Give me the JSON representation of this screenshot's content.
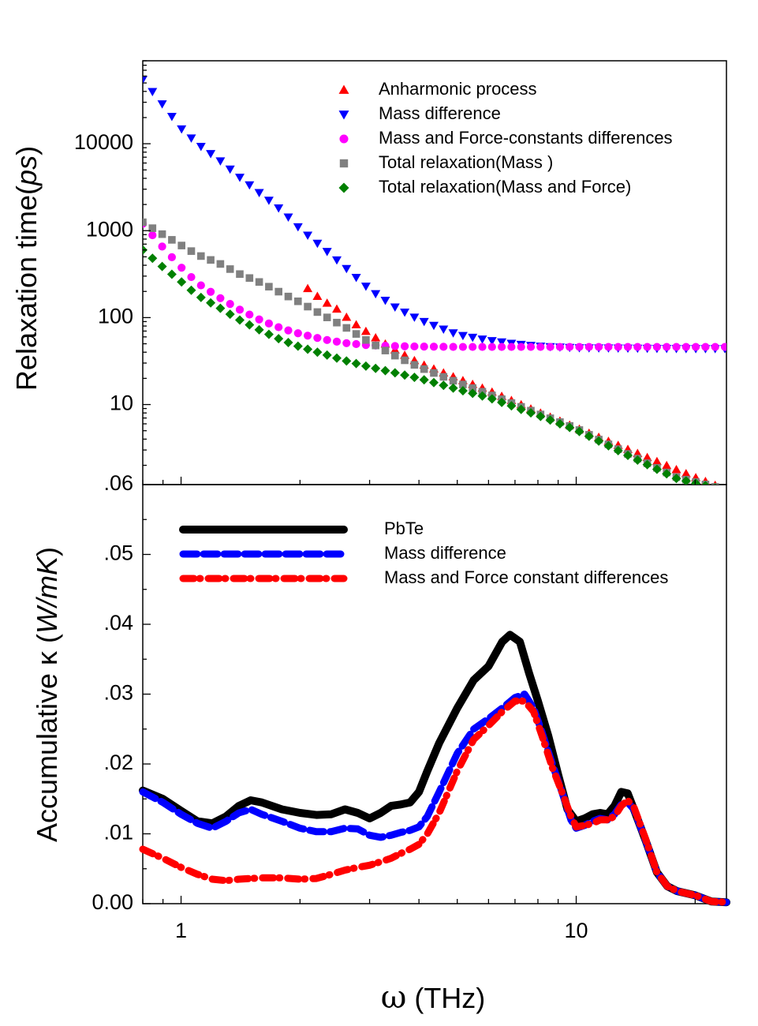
{
  "chart_data": [
    {
      "type": "scatter",
      "panel": "top",
      "title": "",
      "xlabel": "",
      "ylabel": "Relaxation time(ps)",
      "ylabel_parts": {
        "main": "Relaxation time",
        "paren_open": "(",
        "italic": "ps",
        "paren_close": ")"
      },
      "xscale": "log",
      "yscale": "log",
      "xlim": [
        0.8,
        24
      ],
      "ylim": [
        1.2,
        90000
      ],
      "y_ticks": [
        10,
        100,
        1000,
        10000
      ],
      "y_tick_labels": [
        "10",
        "100",
        "1000",
        "10000"
      ],
      "grid": false,
      "legend": "top-right",
      "series": [
        {
          "name": "Anharmonic process",
          "marker": "triangle-up",
          "color": "#ff0000",
          "x": [
            2.08,
            2.27,
            2.48,
            2.7,
            3,
            3.4,
            4,
            5,
            6,
            8,
            10,
            15,
            20,
            24
          ],
          "y": [
            220,
            160,
            125,
            90,
            65,
            45,
            30,
            20,
            14.5,
            8.2,
            5.4,
            2.5,
            1.45,
            1.05
          ]
        },
        {
          "name": "Mass difference",
          "marker": "triangle-down",
          "color": "#0000ff",
          "x": [
            0.8,
            0.9,
            1,
            1.1,
            1.25,
            1.4,
            1.6,
            1.8,
            2,
            2.3,
            2.6,
            3,
            3.5,
            4,
            5,
            6,
            7,
            8,
            10,
            14,
            18,
            24
          ],
          "y": [
            55000,
            28000,
            15000,
            10000,
            6500,
            4200,
            2600,
            1700,
            1050,
            620,
            380,
            210,
            130,
            95,
            64,
            55,
            50,
            47,
            45,
            44.5,
            44,
            44
          ]
        },
        {
          "name": "Mass and Force-constants differences",
          "marker": "circle",
          "color": "#ff00ff",
          "x": [
            0.8,
            0.9,
            1,
            1.1,
            1.25,
            1.4,
            1.6,
            1.8,
            2,
            2.3,
            2.6,
            3,
            3.5,
            4,
            5,
            6,
            8,
            10,
            14,
            18,
            24
          ],
          "y": [
            1200,
            640,
            380,
            250,
            170,
            125,
            92,
            75,
            65,
            56,
            51,
            48,
            47,
            46.5,
            46,
            46,
            46,
            46,
            46,
            46,
            46
          ]
        },
        {
          "name": "Total relaxation(Mass )",
          "marker": "square",
          "color": "#808080",
          "x": [
            0.8,
            0.9,
            1,
            1.1,
            1.25,
            1.4,
            1.6,
            1.8,
            2,
            2.3,
            2.6,
            3,
            3.5,
            4,
            5,
            6,
            8,
            10,
            14,
            18,
            24
          ],
          "y": [
            1250,
            900,
            680,
            530,
            420,
            320,
            250,
            190,
            150,
            105,
            78,
            52,
            36,
            27,
            18,
            13.2,
            7.9,
            5.3,
            2.5,
            1.45,
            1.05
          ]
        },
        {
          "name": "Total relaxation(Mass and Force)",
          "marker": "diamond",
          "color": "#008000",
          "x": [
            0.8,
            0.9,
            1,
            1.1,
            1.25,
            1.4,
            1.6,
            1.8,
            2,
            2.3,
            2.6,
            3,
            3.5,
            4,
            5,
            6,
            8,
            10,
            14,
            18,
            24
          ],
          "y": [
            600,
            380,
            260,
            180,
            130,
            95,
            70,
            55,
            46,
            38,
            32,
            27,
            23,
            20,
            15,
            12,
            7.5,
            5.1,
            2.4,
            1.4,
            1.02
          ]
        }
      ]
    },
    {
      "type": "line",
      "panel": "bottom",
      "title": "",
      "xlabel": "ω (THz)",
      "xlabel_parts": {
        "symbol": "ω",
        "unit": "(THz)"
      },
      "ylabel": "Accumulative κ (W/mK)",
      "ylabel_parts": {
        "main": "Accumulative κ ",
        "paren_open": "(",
        "italic": "W/mK",
        "paren_close": ")"
      },
      "xscale": "log",
      "xlim": [
        0.8,
        24
      ],
      "ylim": [
        0,
        0.06
      ],
      "x_ticks": [
        1,
        10
      ],
      "x_tick_labels": [
        "1",
        "10"
      ],
      "y_ticks": [
        0,
        0.01,
        0.02,
        0.03,
        0.04,
        0.05,
        0.06
      ],
      "y_tick_labels": [
        "0.00",
        ".01",
        ".02",
        ".03",
        ".04",
        ".05",
        ".06"
      ],
      "grid": false,
      "legend": "top-right",
      "series": [
        {
          "name": "PbTe",
          "style": "solid",
          "color": "#000000",
          "x": [
            0.8,
            0.9,
            1,
            1.1,
            1.2,
            1.3,
            1.4,
            1.5,
            1.6,
            1.8,
            2,
            2.2,
            2.4,
            2.6,
            2.8,
            3,
            3.2,
            3.4,
            3.6,
            3.8,
            4,
            4.2,
            4.5,
            5,
            5.5,
            6,
            6.5,
            6.8,
            7.2,
            7.6,
            8,
            8.5,
            9,
            9.5,
            10,
            10.5,
            11,
            11.5,
            12,
            12.5,
            13,
            13.5,
            14,
            15,
            16,
            17,
            18,
            20,
            22,
            24
          ],
          "y": [
            0.0162,
            0.015,
            0.0133,
            0.0118,
            0.0115,
            0.0125,
            0.014,
            0.0148,
            0.0145,
            0.0135,
            0.013,
            0.0127,
            0.0128,
            0.0135,
            0.013,
            0.0122,
            0.013,
            0.014,
            0.0142,
            0.0145,
            0.016,
            0.019,
            0.023,
            0.028,
            0.032,
            0.034,
            0.0375,
            0.0385,
            0.0375,
            0.033,
            0.029,
            0.024,
            0.0185,
            0.0135,
            0.0118,
            0.0122,
            0.0128,
            0.013,
            0.0128,
            0.014,
            0.016,
            0.0158,
            0.0135,
            0.009,
            0.0045,
            0.0025,
            0.0018,
            0.0012,
            0.0003,
            0.0002
          ]
        },
        {
          "name": "Mass difference",
          "style": "dash",
          "color": "#0000ff",
          "x": [
            0.8,
            0.9,
            1,
            1.1,
            1.2,
            1.3,
            1.4,
            1.5,
            1.6,
            1.8,
            2,
            2.2,
            2.4,
            2.6,
            2.8,
            3,
            3.2,
            3.4,
            3.6,
            3.8,
            4,
            4.2,
            4.5,
            5,
            5.5,
            6,
            6.5,
            7,
            7.4,
            7.8,
            8.2,
            8.7,
            9.2,
            9.7,
            10,
            10.5,
            11,
            11.5,
            12,
            12.5,
            13,
            13.5,
            14,
            15,
            16,
            17,
            18,
            20,
            22,
            24
          ],
          "y": [
            0.016,
            0.0145,
            0.0128,
            0.0115,
            0.0108,
            0.0118,
            0.013,
            0.0135,
            0.0128,
            0.0118,
            0.0108,
            0.0103,
            0.0103,
            0.0108,
            0.0107,
            0.0098,
            0.0095,
            0.0098,
            0.0102,
            0.0105,
            0.011,
            0.0125,
            0.016,
            0.0215,
            0.025,
            0.0265,
            0.028,
            0.0295,
            0.03,
            0.028,
            0.0245,
            0.02,
            0.016,
            0.012,
            0.0108,
            0.0112,
            0.0118,
            0.0122,
            0.012,
            0.0128,
            0.0142,
            0.0145,
            0.0135,
            0.009,
            0.0045,
            0.0025,
            0.0018,
            0.0012,
            0.0003,
            0.0002
          ]
        },
        {
          "name": "Mass and Force constant differences",
          "style": "dash-dot",
          "color": "#ff0000",
          "x": [
            0.8,
            0.9,
            1,
            1.1,
            1.2,
            1.3,
            1.4,
            1.6,
            1.8,
            2,
            2.2,
            2.4,
            2.6,
            2.8,
            3,
            3.2,
            3.4,
            3.6,
            3.8,
            4,
            4.2,
            4.5,
            5,
            5.5,
            6,
            6.5,
            7,
            7.4,
            7.8,
            8.2,
            8.7,
            9.2,
            9.7,
            10,
            10.5,
            11,
            11.5,
            12,
            12.5,
            13,
            13.5,
            14,
            15,
            16,
            17,
            18,
            20,
            22,
            24
          ],
          "y": [
            0.0078,
            0.0065,
            0.0052,
            0.0042,
            0.0035,
            0.0033,
            0.0035,
            0.0037,
            0.0037,
            0.0035,
            0.0036,
            0.0042,
            0.0048,
            0.0052,
            0.0055,
            0.006,
            0.0065,
            0.0072,
            0.0078,
            0.0085,
            0.01,
            0.013,
            0.019,
            0.0235,
            0.0255,
            0.0275,
            0.029,
            0.029,
            0.0275,
            0.024,
            0.0195,
            0.016,
            0.0125,
            0.011,
            0.0112,
            0.0115,
            0.012,
            0.012,
            0.0125,
            0.014,
            0.0148,
            0.0138,
            0.0092,
            0.0045,
            0.0025,
            0.0018,
            0.0012,
            0.0003,
            0.0002
          ]
        }
      ]
    }
  ]
}
